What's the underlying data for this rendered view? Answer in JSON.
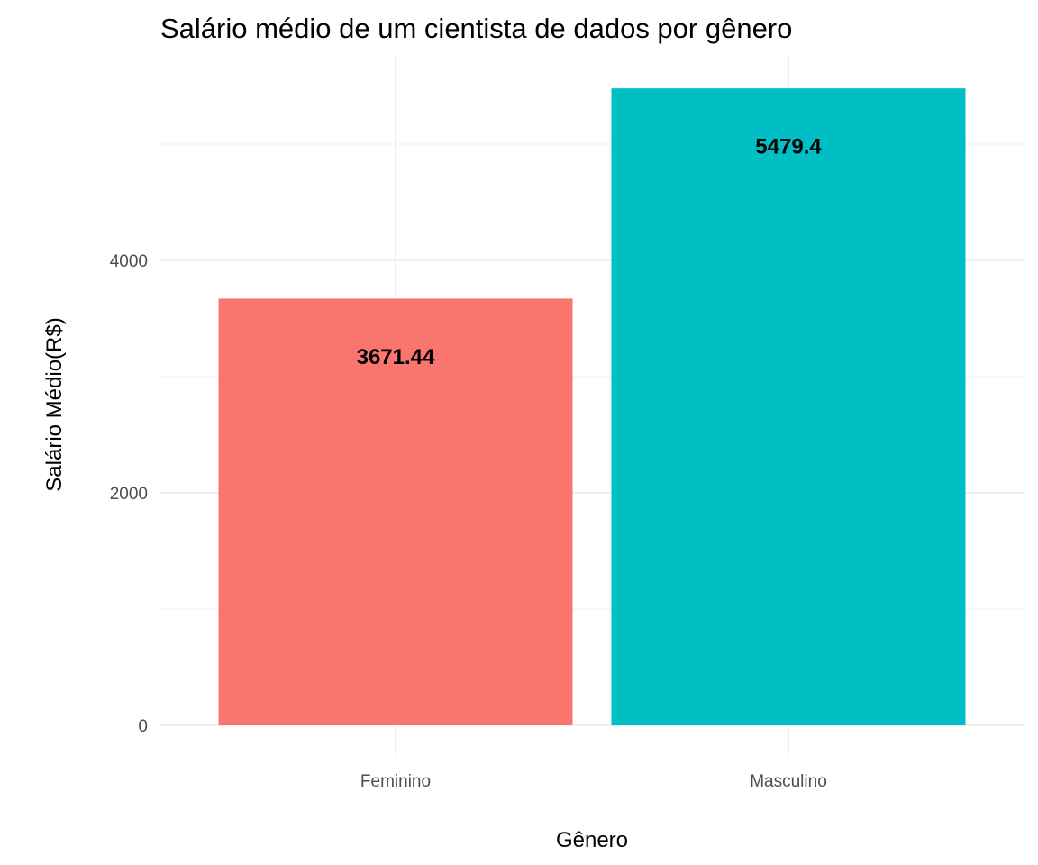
{
  "chart_data": {
    "type": "bar",
    "title": "Salário médio de um cientista de dados por gênero",
    "xlabel": "Gênero",
    "ylabel": "Salário Médio(R$)",
    "categories": [
      "Feminino",
      "Masculino"
    ],
    "values": [
      3671.44,
      5479.4
    ],
    "data_labels": [
      "3671.44",
      "5479.4"
    ],
    "colors": [
      "#F8766D",
      "#00BFC4"
    ],
    "ylim": [
      0,
      5750
    ],
    "yticks": [
      0,
      2000,
      4000
    ],
    "ytick_labels": [
      "0",
      "2000",
      "4000"
    ],
    "grid": true,
    "legend": "none"
  }
}
